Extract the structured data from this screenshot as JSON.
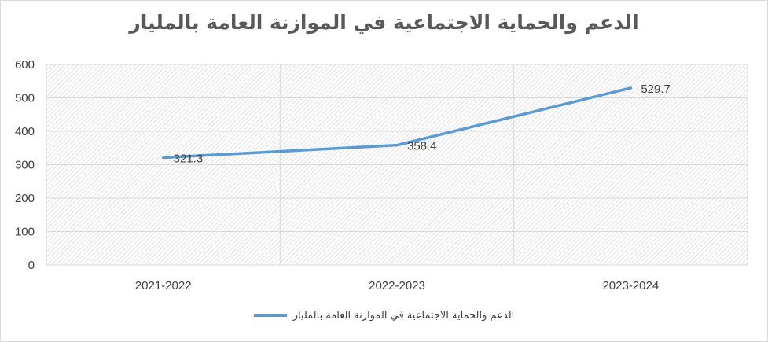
{
  "chart_data": {
    "type": "line",
    "title": "الدعم والحماية الاجتماعية في الموازنة العامة بالمليار",
    "categories": [
      "2021-2022",
      "2022-2023",
      "2023-2024"
    ],
    "series": [
      {
        "name": "الدعم والحماية الاجتماعية في الموازنة العامة بالمليار",
        "values": [
          321.3,
          358.4,
          529.7
        ],
        "color": "#5b9bd5"
      }
    ],
    "data_labels": [
      "321.3",
      "358.4",
      "529.7"
    ],
    "y_ticks": [
      "0",
      "100",
      "200",
      "300",
      "400",
      "500",
      "600"
    ],
    "ylim": [
      0,
      600
    ],
    "grid": true,
    "plot_pattern": "diagonal-hatch",
    "legend": "bottom"
  }
}
